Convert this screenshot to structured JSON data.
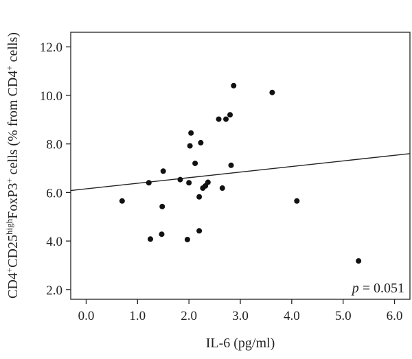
{
  "chart_data": {
    "type": "scatter",
    "xlabel": "IL-6 (pg/ml)",
    "ylabel": {
      "parts": [
        {
          "t": "CD4",
          "s": "n"
        },
        {
          "t": "+",
          "s": "sup"
        },
        {
          "t": "CD25",
          "s": "n"
        },
        {
          "t": "high",
          "s": "sup"
        },
        {
          "t": "FoxP3",
          "s": "n"
        },
        {
          "t": "+",
          "s": "sup"
        },
        {
          "t": " cells (% from CD4",
          "s": "n"
        },
        {
          "t": "+",
          "s": "sup"
        },
        {
          "t": " cells)",
          "s": "n"
        }
      ]
    },
    "xlim": [
      -0.3,
      6.3
    ],
    "ylim": [
      1.6,
      12.6
    ],
    "xticks": [
      0,
      1,
      2,
      3,
      4,
      5,
      6
    ],
    "xtick_labels": [
      "0.0",
      "1.0",
      "2.0",
      "3.0",
      "4.0",
      "5.0",
      "6.0"
    ],
    "yticks": [
      2,
      4,
      6,
      8,
      10,
      12
    ],
    "ytick_labels": [
      "2.0",
      "4.0",
      "6.0",
      "8.0",
      "10.0",
      "12.0"
    ],
    "grid": false,
    "points": [
      {
        "x": 0.7,
        "y": 5.65
      },
      {
        "x": 1.22,
        "y": 6.4
      },
      {
        "x": 1.25,
        "y": 4.08
      },
      {
        "x": 1.47,
        "y": 4.28
      },
      {
        "x": 1.48,
        "y": 5.42
      },
      {
        "x": 1.5,
        "y": 6.88
      },
      {
        "x": 1.83,
        "y": 6.53
      },
      {
        "x": 1.97,
        "y": 4.06
      },
      {
        "x": 2.0,
        "y": 6.4
      },
      {
        "x": 2.02,
        "y": 7.92
      },
      {
        "x": 2.04,
        "y": 8.45
      },
      {
        "x": 2.12,
        "y": 7.2
      },
      {
        "x": 2.2,
        "y": 4.42
      },
      {
        "x": 2.2,
        "y": 5.82
      },
      {
        "x": 2.23,
        "y": 8.05
      },
      {
        "x": 2.27,
        "y": 6.18
      },
      {
        "x": 2.32,
        "y": 6.27
      },
      {
        "x": 2.37,
        "y": 6.42
      },
      {
        "x": 2.58,
        "y": 9.02
      },
      {
        "x": 2.65,
        "y": 6.18
      },
      {
        "x": 2.72,
        "y": 9.02
      },
      {
        "x": 2.8,
        "y": 9.2
      },
      {
        "x": 2.82,
        "y": 7.12
      },
      {
        "x": 2.87,
        "y": 10.4
      },
      {
        "x": 3.62,
        "y": 10.12
      },
      {
        "x": 4.1,
        "y": 5.65
      },
      {
        "x": 5.3,
        "y": 3.18
      }
    ],
    "fit_line": {
      "x": [
        -0.3,
        6.3
      ],
      "y": [
        6.08,
        7.6
      ]
    },
    "annotation": {
      "italic": "p",
      "rest": " = 0.051"
    }
  }
}
